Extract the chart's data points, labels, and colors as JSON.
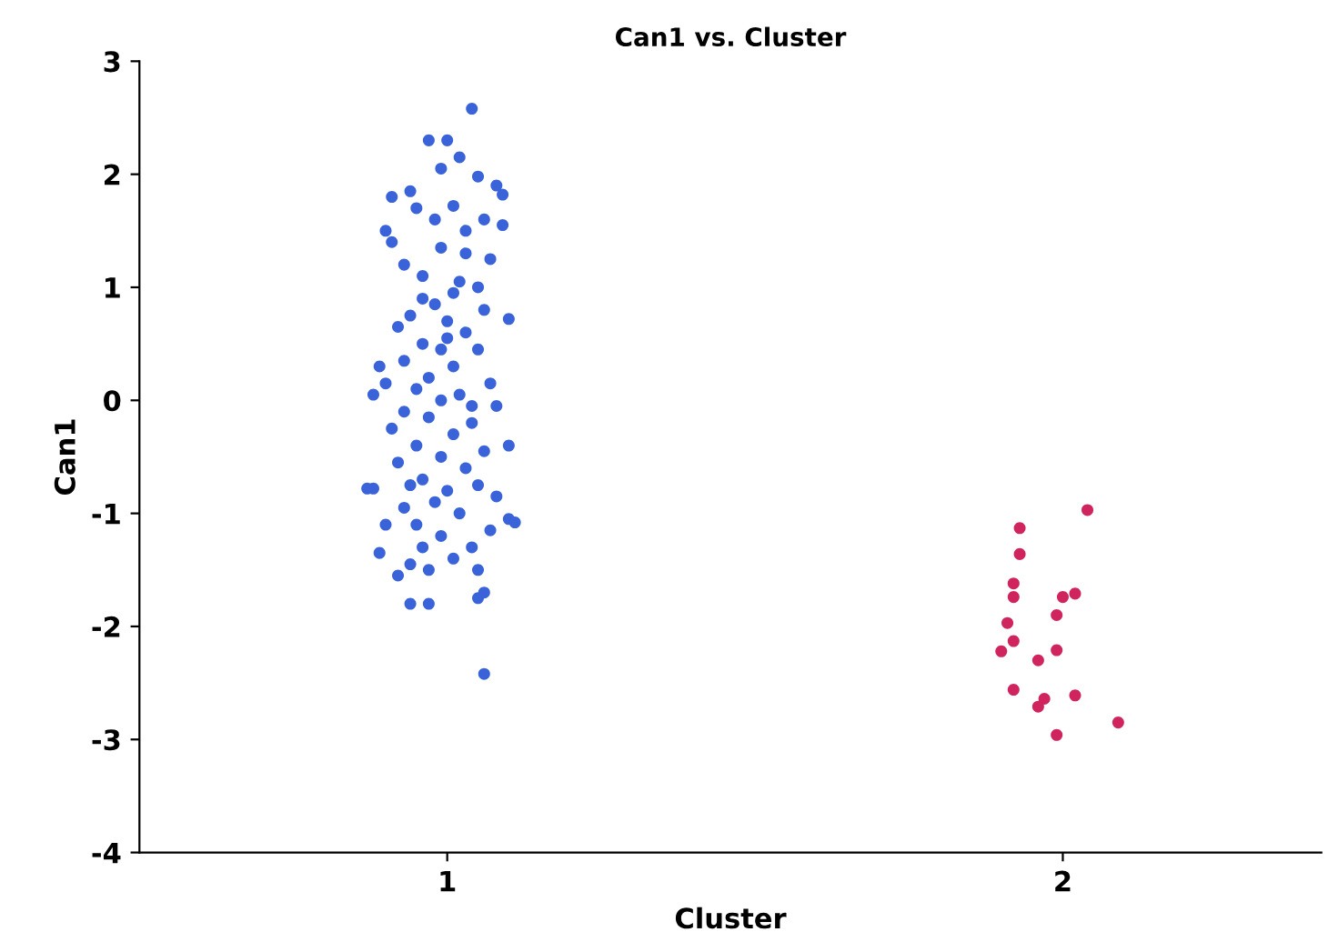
{
  "chart_data": {
    "type": "scatter",
    "title": "Can1 vs. Cluster",
    "xlabel": "Cluster",
    "ylabel": "Can1",
    "xlim": [
      0.5,
      2.42
    ],
    "xticks": [
      1,
      2
    ],
    "ylim": [
      -4,
      3
    ],
    "yticks": [
      -4,
      -3,
      -2,
      -1,
      0,
      1,
      2,
      3
    ],
    "grid": false,
    "legend": false,
    "marker": "circle",
    "series": [
      {
        "color": "#3a62d9",
        "x": [
          1.04,
          0.97,
          1.0,
          1.02,
          0.99,
          1.05,
          1.08,
          1.09,
          0.91,
          0.94,
          0.95,
          1.01,
          1.06,
          1.09,
          1.03,
          0.9,
          0.91,
          0.99,
          1.07,
          0.93,
          0.96,
          1.02,
          1.05,
          1.01,
          0.98,
          1.06,
          0.94,
          1.1,
          1.0,
          0.92,
          1.03,
          0.96,
          0.99,
          1.05,
          0.93,
          1.01,
          0.97,
          1.07,
          0.89,
          0.9,
          0.95,
          1.02,
          0.88,
          0.99,
          1.04,
          0.93,
          0.97,
          1.08,
          0.91,
          1.01,
          0.95,
          1.06,
          0.99,
          1.1,
          0.92,
          1.03,
          0.96,
          0.88,
          0.87,
          0.94,
          1.0,
          1.05,
          1.08,
          0.98,
          0.93,
          1.02,
          0.95,
          1.1,
          1.11,
          1.07,
          0.9,
          0.99,
          1.04,
          0.96,
          0.89,
          1.01,
          0.94,
          0.97,
          0.92,
          1.05,
          1.06,
          1.05,
          0.94,
          0.97,
          1.06,
          0.98,
          1.03,
          0.96,
          1.0,
          1.04
        ],
        "values": [
          2.58,
          2.3,
          2.3,
          2.15,
          2.05,
          1.98,
          1.9,
          1.82,
          1.8,
          1.85,
          1.7,
          1.72,
          1.6,
          1.55,
          1.5,
          1.5,
          1.4,
          1.35,
          1.25,
          1.2,
          1.1,
          1.05,
          1.0,
          0.95,
          0.85,
          0.8,
          0.75,
          0.72,
          0.7,
          0.65,
          0.6,
          0.5,
          0.45,
          0.45,
          0.35,
          0.3,
          0.2,
          0.15,
          0.3,
          0.15,
          0.1,
          0.05,
          0.05,
          0.0,
          -0.05,
          -0.1,
          -0.15,
          -0.05,
          -0.25,
          -0.3,
          -0.4,
          -0.45,
          -0.5,
          -0.4,
          -0.55,
          -0.6,
          -0.7,
          -0.78,
          -0.78,
          -0.75,
          -0.8,
          -0.75,
          -0.85,
          -0.9,
          -0.95,
          -1.0,
          -1.1,
          -1.05,
          -1.08,
          -1.15,
          -1.1,
          -1.2,
          -1.3,
          -1.3,
          -1.35,
          -1.4,
          -1.45,
          -1.5,
          -1.55,
          -1.5,
          -1.7,
          -1.75,
          -1.8,
          -1.8,
          -2.42,
          1.6,
          1.3,
          0.9,
          0.55,
          -0.2
        ]
      },
      {
        "color": "#d0245e",
        "x": [
          2.04,
          1.93,
          1.93,
          1.92,
          1.92,
          2.0,
          2.02,
          1.99,
          1.91,
          1.92,
          1.9,
          1.99,
          1.96,
          1.92,
          1.97,
          1.96,
          2.02,
          2.09,
          1.99
        ],
        "values": [
          -0.97,
          -1.13,
          -1.36,
          -1.62,
          -1.74,
          -1.74,
          -1.71,
          -1.9,
          -1.97,
          -2.13,
          -2.22,
          -2.21,
          -2.3,
          -2.56,
          -2.64,
          -2.71,
          -2.61,
          -2.85,
          -2.96
        ]
      }
    ]
  }
}
